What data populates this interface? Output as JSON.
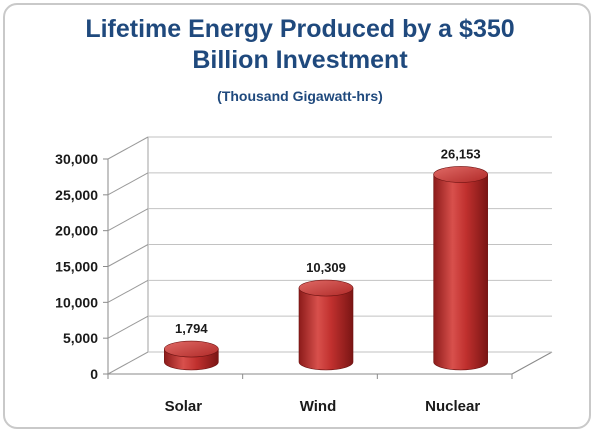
{
  "chart_data": {
    "type": "bar",
    "title": "Lifetime Energy Produced by a $350 Billion Investment",
    "title_lines": [
      "Lifetime Energy Produced by a $350",
      "Billion Investment"
    ],
    "subtitle": "(Thousand Gigawatt-hrs)",
    "categories": [
      "Solar",
      "Wind",
      "Nuclear"
    ],
    "values": [
      1794,
      10309,
      26153
    ],
    "data_labels": [
      "1,794",
      "10,309",
      "26,153"
    ],
    "yticks": [
      0,
      5000,
      10000,
      15000,
      20000,
      25000,
      30000
    ],
    "ytick_labels": [
      "0",
      "5,000",
      "10,000",
      "15,000",
      "20,000",
      "25,000",
      "30,000"
    ],
    "ylim": [
      0,
      30000
    ],
    "bar_color": "#c0302e",
    "grid": true,
    "legend": "none",
    "xlabel": "",
    "ylabel": ""
  }
}
